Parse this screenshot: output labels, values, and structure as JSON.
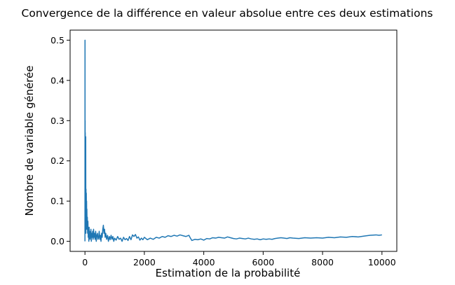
{
  "chart_data": {
    "type": "line",
    "title": "Convergence de la différence en valeur absolue entre ces deux estimations",
    "xlabel": "Estimation de la probabilité",
    "ylabel": "Nombre de variable générée",
    "xlim": [
      -500,
      10500
    ],
    "ylim": [
      -0.025,
      0.525
    ],
    "xticks": [
      0,
      2000,
      4000,
      6000,
      8000,
      10000
    ],
    "xtick_labels": [
      "0",
      "2000",
      "4000",
      "6000",
      "8000",
      "10000"
    ],
    "yticks": [
      0.0,
      0.1,
      0.2,
      0.3,
      0.4,
      0.5
    ],
    "ytick_labels": [
      "0.0",
      "0.1",
      "0.2",
      "0.3",
      "0.4",
      "0.5"
    ],
    "grid": false,
    "color": "#1f77b4",
    "series": [
      {
        "x": [
          0,
          2,
          4,
          6,
          8,
          10,
          14,
          18,
          22,
          26,
          30,
          35,
          40,
          45,
          50,
          55,
          60,
          65,
          70,
          80,
          90,
          100,
          110,
          120,
          130,
          140,
          150,
          160,
          170,
          180,
          190,
          200,
          215,
          230,
          245,
          260,
          275,
          290,
          300,
          320,
          340,
          360,
          380,
          400,
          420,
          440,
          460,
          480,
          500,
          520,
          540,
          560,
          580,
          600,
          620,
          640,
          660,
          680,
          700,
          730,
          760,
          790,
          820,
          850,
          880,
          910,
          940,
          970,
          1000,
          1050,
          1100,
          1150,
          1200,
          1250,
          1300,
          1350,
          1400,
          1450,
          1500,
          1550,
          1600,
          1650,
          1700,
          1750,
          1800,
          1850,
          1900,
          1950,
          2000,
          2100,
          2200,
          2300,
          2400,
          2500,
          2600,
          2700,
          2800,
          2900,
          3000,
          3100,
          3200,
          3300,
          3400,
          3500,
          3550,
          3600,
          3700,
          3800,
          3900,
          4000,
          4100,
          4200,
          4300,
          4400,
          4500,
          4600,
          4700,
          4800,
          4900,
          5000,
          5100,
          5200,
          5300,
          5400,
          5500,
          5600,
          5700,
          5800,
          5900,
          6000,
          6100,
          6200,
          6300,
          6400,
          6500,
          6600,
          6700,
          6800,
          6900,
          7000,
          7200,
          7400,
          7600,
          7800,
          8000,
          8200,
          8400,
          8600,
          8800,
          9000,
          9200,
          9400,
          9600,
          9800,
          9900,
          10000
        ],
        "values": [
          0.0,
          0.5,
          0.15,
          0.3,
          0.1,
          0.27,
          0.05,
          0.22,
          0.08,
          0.26,
          0.02,
          0.13,
          0.04,
          0.12,
          0.07,
          0.1,
          0.03,
          0.08,
          0.05,
          0.06,
          0.02,
          0.05,
          0.01,
          0.03,
          0.0,
          0.035,
          0.015,
          0.025,
          0.005,
          0.02,
          0.01,
          0.03,
          0.0,
          0.02,
          0.01,
          0.025,
          0.005,
          0.03,
          0.01,
          0.02,
          0.005,
          0.025,
          0.0,
          0.015,
          0.02,
          0.005,
          0.01,
          0.025,
          0.005,
          0.015,
          0.0,
          0.02,
          0.01,
          0.03,
          0.04,
          0.02,
          0.03,
          0.01,
          0.02,
          0.005,
          0.015,
          0.0,
          0.012,
          0.004,
          0.015,
          0.005,
          0.012,
          0.0,
          0.008,
          0.003,
          0.012,
          0.005,
          0.008,
          0.0,
          0.01,
          0.004,
          0.007,
          0.002,
          0.012,
          0.004,
          0.016,
          0.012,
          0.017,
          0.008,
          0.011,
          0.003,
          0.008,
          0.004,
          0.01,
          0.004,
          0.008,
          0.005,
          0.01,
          0.008,
          0.012,
          0.01,
          0.014,
          0.012,
          0.015,
          0.013,
          0.016,
          0.014,
          0.012,
          0.015,
          0.008,
          0.002,
          0.005,
          0.004,
          0.006,
          0.003,
          0.007,
          0.006,
          0.009,
          0.008,
          0.01,
          0.009,
          0.008,
          0.011,
          0.009,
          0.007,
          0.006,
          0.008,
          0.007,
          0.006,
          0.008,
          0.006,
          0.005,
          0.006,
          0.004,
          0.006,
          0.005,
          0.006,
          0.005,
          0.007,
          0.008,
          0.009,
          0.008,
          0.007,
          0.009,
          0.008,
          0.007,
          0.009,
          0.008,
          0.009,
          0.008,
          0.01,
          0.009,
          0.011,
          0.01,
          0.012,
          0.011,
          0.013,
          0.015,
          0.016,
          0.015,
          0.016
        ]
      }
    ]
  }
}
